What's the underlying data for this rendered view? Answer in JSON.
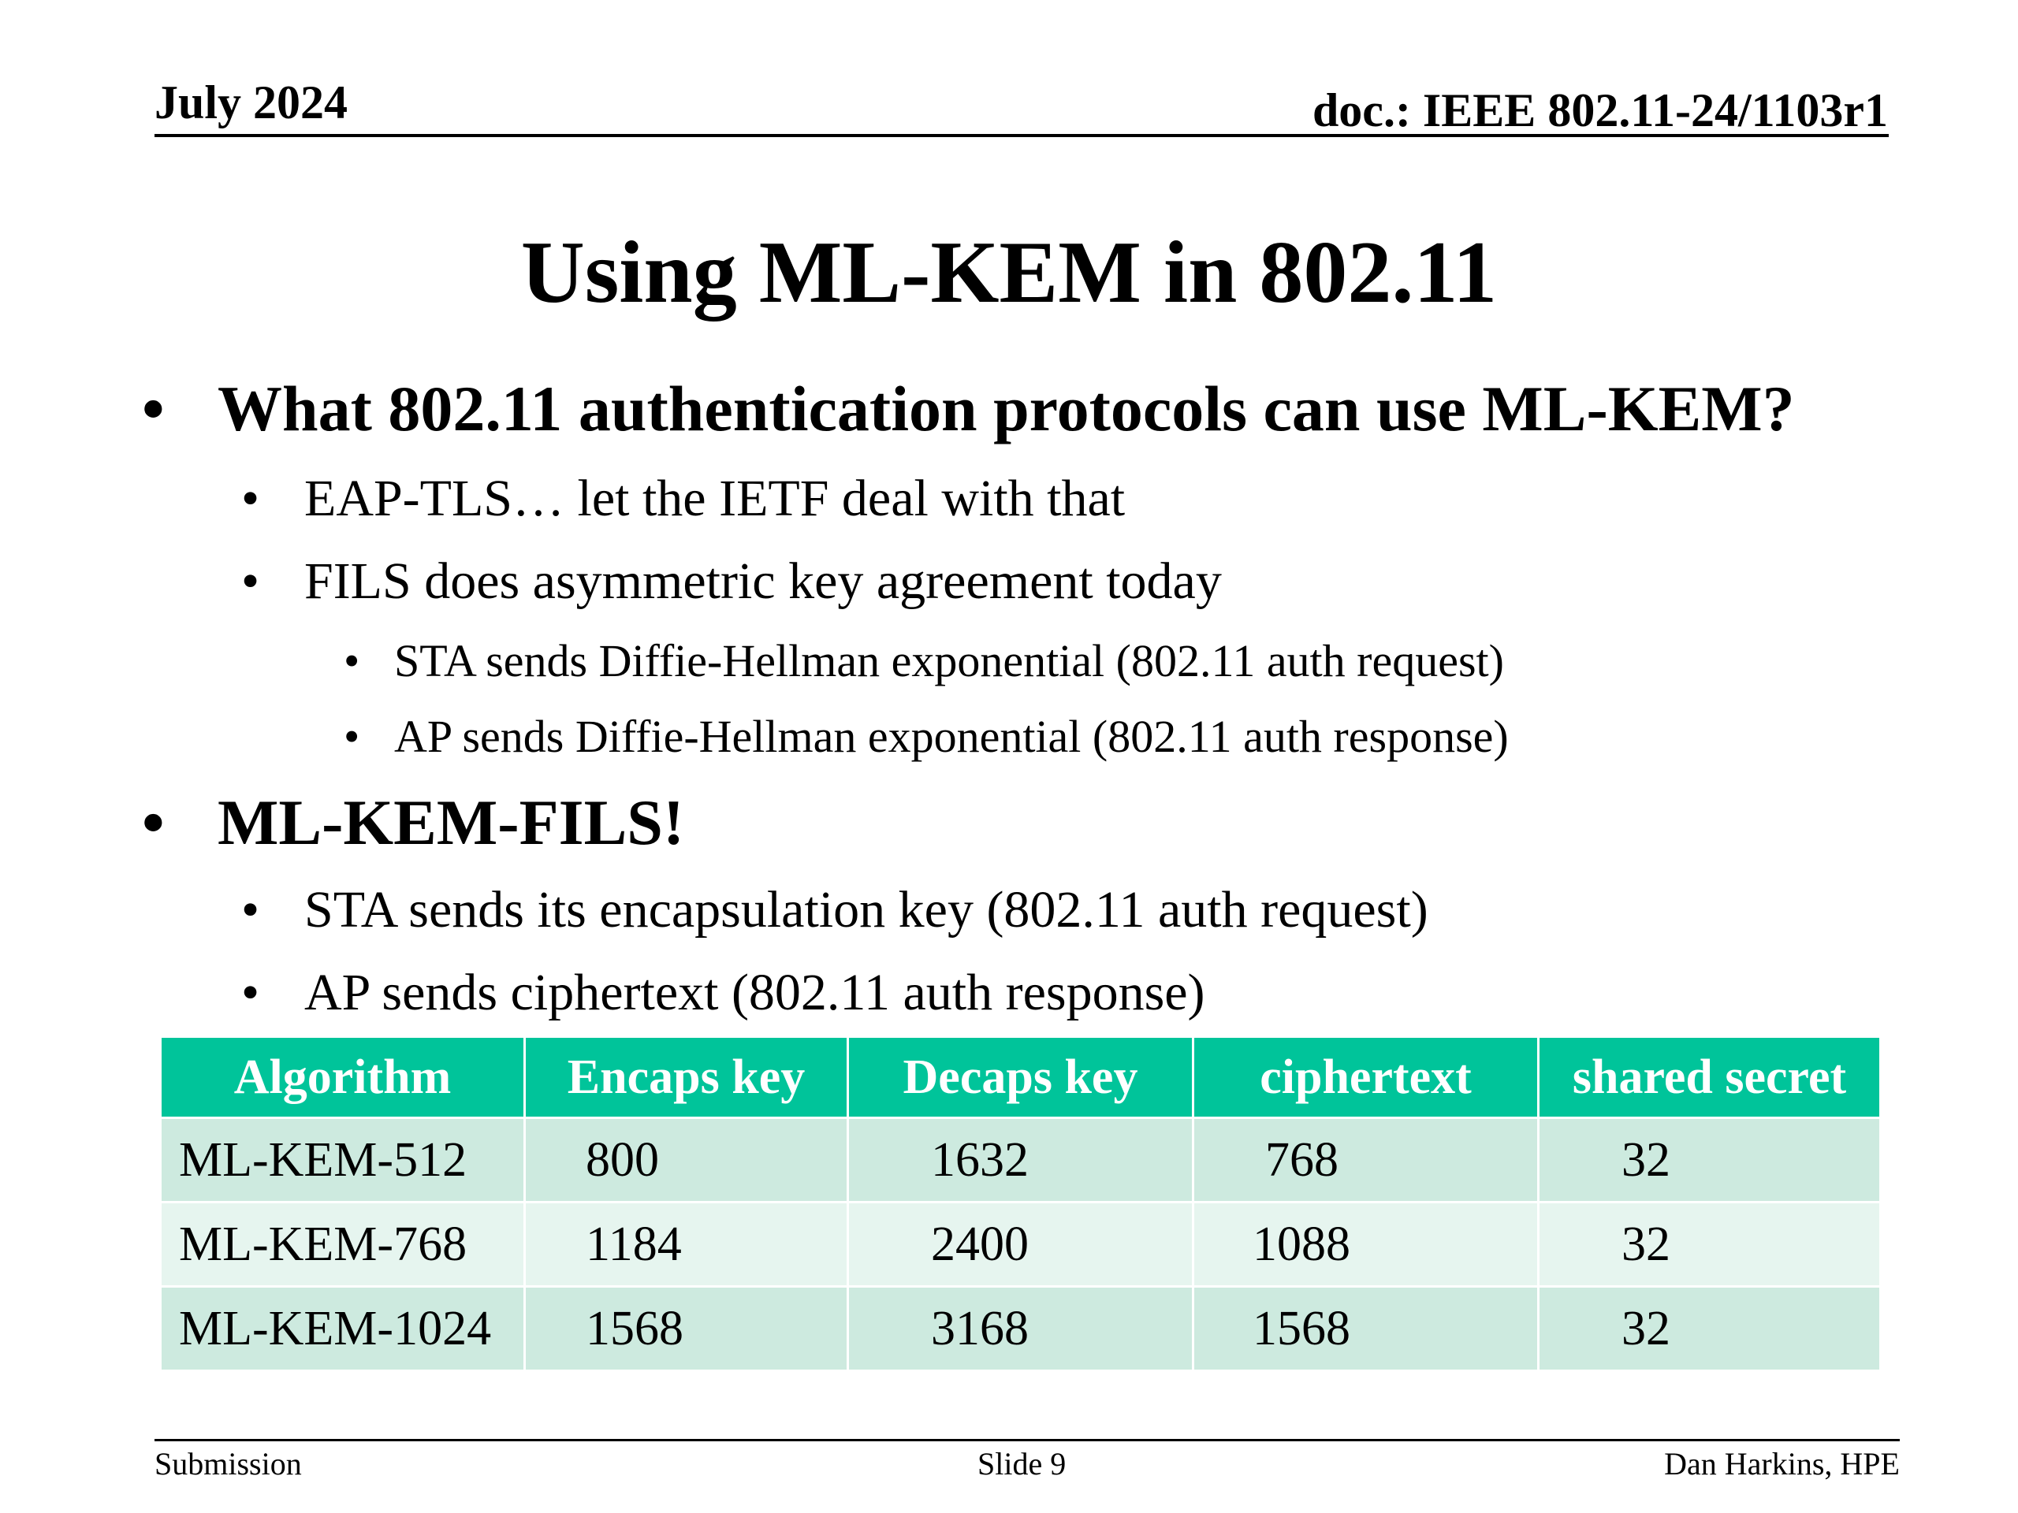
{
  "header": {
    "date": "July 2024",
    "doc": "doc.: IEEE 802.11-24/1103r1"
  },
  "title": "Using ML-KEM in 802.11",
  "bullets": [
    {
      "text": "What 802.11 authentication protocols can use ML-KEM?",
      "children": [
        {
          "text": "EAP-TLS… let the IETF deal with that",
          "children": []
        },
        {
          "text": "FILS does asymmetric key agreement today",
          "children": [
            {
              "text": "STA sends Diffie-Hellman exponential (802.11 auth request)"
            },
            {
              "text": "AP sends Diffie-Hellman exponential (802.11 auth response)"
            }
          ]
        }
      ]
    },
    {
      "text": "ML-KEM-FILS!",
      "children": [
        {
          "text": "STA sends its encapsulation key (802.11 auth request)",
          "children": []
        },
        {
          "text": "AP sends ciphertext  (802.11 auth response)",
          "children": []
        }
      ]
    }
  ],
  "bullet_glyph": "•",
  "table": {
    "headers": [
      "Algorithm",
      "Encaps key",
      "Decaps key",
      "ciphertext",
      "shared secret"
    ],
    "rows": [
      [
        "ML-KEM-512",
        "800",
        "1632",
        "768",
        "32"
      ],
      [
        "ML-KEM-768",
        "1184",
        "2400",
        "1088",
        "32"
      ],
      [
        "ML-KEM-1024",
        "1568",
        "3168",
        "1568",
        "32"
      ]
    ],
    "header_color": "#00c49a",
    "row_colors": [
      "#cdeadf",
      "#e6f5ef"
    ]
  },
  "footer": {
    "left": "Submission",
    "center": "Slide 9",
    "right": "Dan Harkins, HPE"
  }
}
